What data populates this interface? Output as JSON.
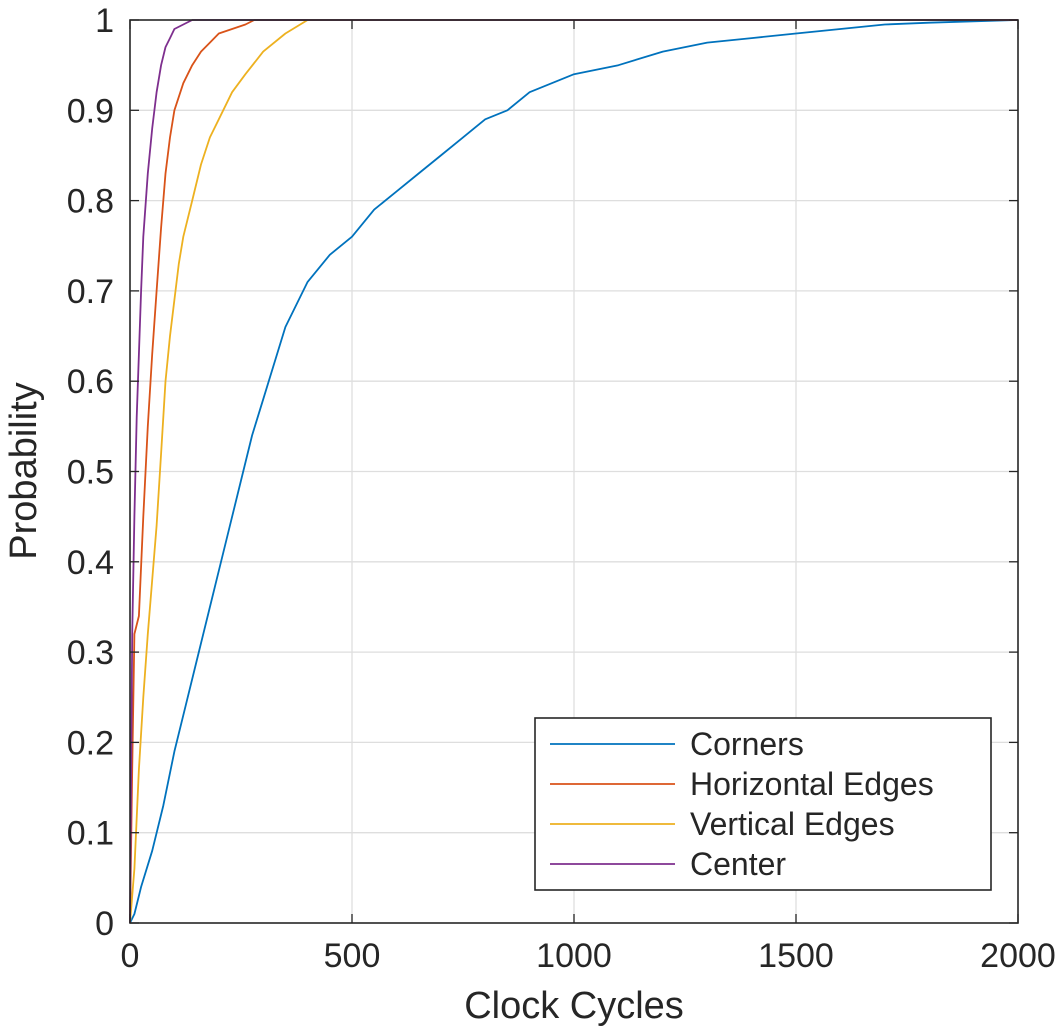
{
  "chart_data": {
    "type": "line",
    "xlabel": "Clock Cycles",
    "ylabel": "Probability",
    "xlim": [
      0,
      2000
    ],
    "ylim": [
      0,
      1
    ],
    "x_ticks": [
      "0",
      "500",
      "1000",
      "1500",
      "2000"
    ],
    "y_ticks": [
      "0",
      "0.1",
      "0.2",
      "0.3",
      "0.4",
      "0.5",
      "0.6",
      "0.7",
      "0.8",
      "0.9",
      "1"
    ],
    "grid": true,
    "legend_position": "bottom-right",
    "series": [
      {
        "name": "Corners",
        "color": "#0072BD",
        "points": [
          [
            0,
            0
          ],
          [
            10,
            0.01
          ],
          [
            25,
            0.04
          ],
          [
            50,
            0.08
          ],
          [
            75,
            0.13
          ],
          [
            100,
            0.19
          ],
          [
            125,
            0.24
          ],
          [
            150,
            0.29
          ],
          [
            175,
            0.34
          ],
          [
            200,
            0.39
          ],
          [
            225,
            0.44
          ],
          [
            250,
            0.49
          ],
          [
            275,
            0.54
          ],
          [
            300,
            0.58
          ],
          [
            325,
            0.62
          ],
          [
            350,
            0.66
          ],
          [
            400,
            0.71
          ],
          [
            450,
            0.74
          ],
          [
            500,
            0.76
          ],
          [
            550,
            0.79
          ],
          [
            600,
            0.81
          ],
          [
            650,
            0.83
          ],
          [
            700,
            0.85
          ],
          [
            750,
            0.87
          ],
          [
            800,
            0.89
          ],
          [
            850,
            0.9
          ],
          [
            900,
            0.92
          ],
          [
            950,
            0.93
          ],
          [
            1000,
            0.94
          ],
          [
            1100,
            0.95
          ],
          [
            1200,
            0.965
          ],
          [
            1300,
            0.975
          ],
          [
            1400,
            0.98
          ],
          [
            1500,
            0.985
          ],
          [
            1600,
            0.99
          ],
          [
            1700,
            0.995
          ],
          [
            1800,
            0.997
          ],
          [
            2000,
            1
          ]
        ]
      },
      {
        "name": "Horizontal Edges",
        "color": "#D95319",
        "points": [
          [
            0,
            0
          ],
          [
            5,
            0.17
          ],
          [
            10,
            0.32
          ],
          [
            20,
            0.34
          ],
          [
            30,
            0.45
          ],
          [
            40,
            0.55
          ],
          [
            50,
            0.63
          ],
          [
            60,
            0.7
          ],
          [
            70,
            0.77
          ],
          [
            80,
            0.83
          ],
          [
            90,
            0.87
          ],
          [
            100,
            0.9
          ],
          [
            120,
            0.93
          ],
          [
            140,
            0.95
          ],
          [
            160,
            0.965
          ],
          [
            180,
            0.975
          ],
          [
            200,
            0.985
          ],
          [
            230,
            0.99
          ],
          [
            260,
            0.995
          ],
          [
            280,
            1
          ],
          [
            2000,
            1
          ]
        ]
      },
      {
        "name": "Vertical Edges",
        "color": "#EDB120",
        "points": [
          [
            0,
            0
          ],
          [
            10,
            0.06
          ],
          [
            20,
            0.17
          ],
          [
            30,
            0.25
          ],
          [
            40,
            0.32
          ],
          [
            50,
            0.38
          ],
          [
            60,
            0.44
          ],
          [
            70,
            0.52
          ],
          [
            80,
            0.6
          ],
          [
            90,
            0.65
          ],
          [
            100,
            0.69
          ],
          [
            110,
            0.73
          ],
          [
            120,
            0.76
          ],
          [
            140,
            0.8
          ],
          [
            160,
            0.84
          ],
          [
            180,
            0.87
          ],
          [
            200,
            0.89
          ],
          [
            230,
            0.92
          ],
          [
            260,
            0.94
          ],
          [
            300,
            0.965
          ],
          [
            350,
            0.985
          ],
          [
            400,
            1
          ],
          [
            2000,
            1
          ]
        ]
      },
      {
        "name": "Center",
        "color": "#7E2F8E",
        "points": [
          [
            0,
            0
          ],
          [
            5,
            0.32
          ],
          [
            10,
            0.45
          ],
          [
            15,
            0.56
          ],
          [
            20,
            0.63
          ],
          [
            25,
            0.7
          ],
          [
            30,
            0.76
          ],
          [
            40,
            0.83
          ],
          [
            50,
            0.88
          ],
          [
            60,
            0.92
          ],
          [
            70,
            0.95
          ],
          [
            80,
            0.97
          ],
          [
            90,
            0.98
          ],
          [
            100,
            0.99
          ],
          [
            120,
            0.995
          ],
          [
            140,
            1
          ],
          [
            2000,
            1
          ]
        ]
      }
    ]
  }
}
